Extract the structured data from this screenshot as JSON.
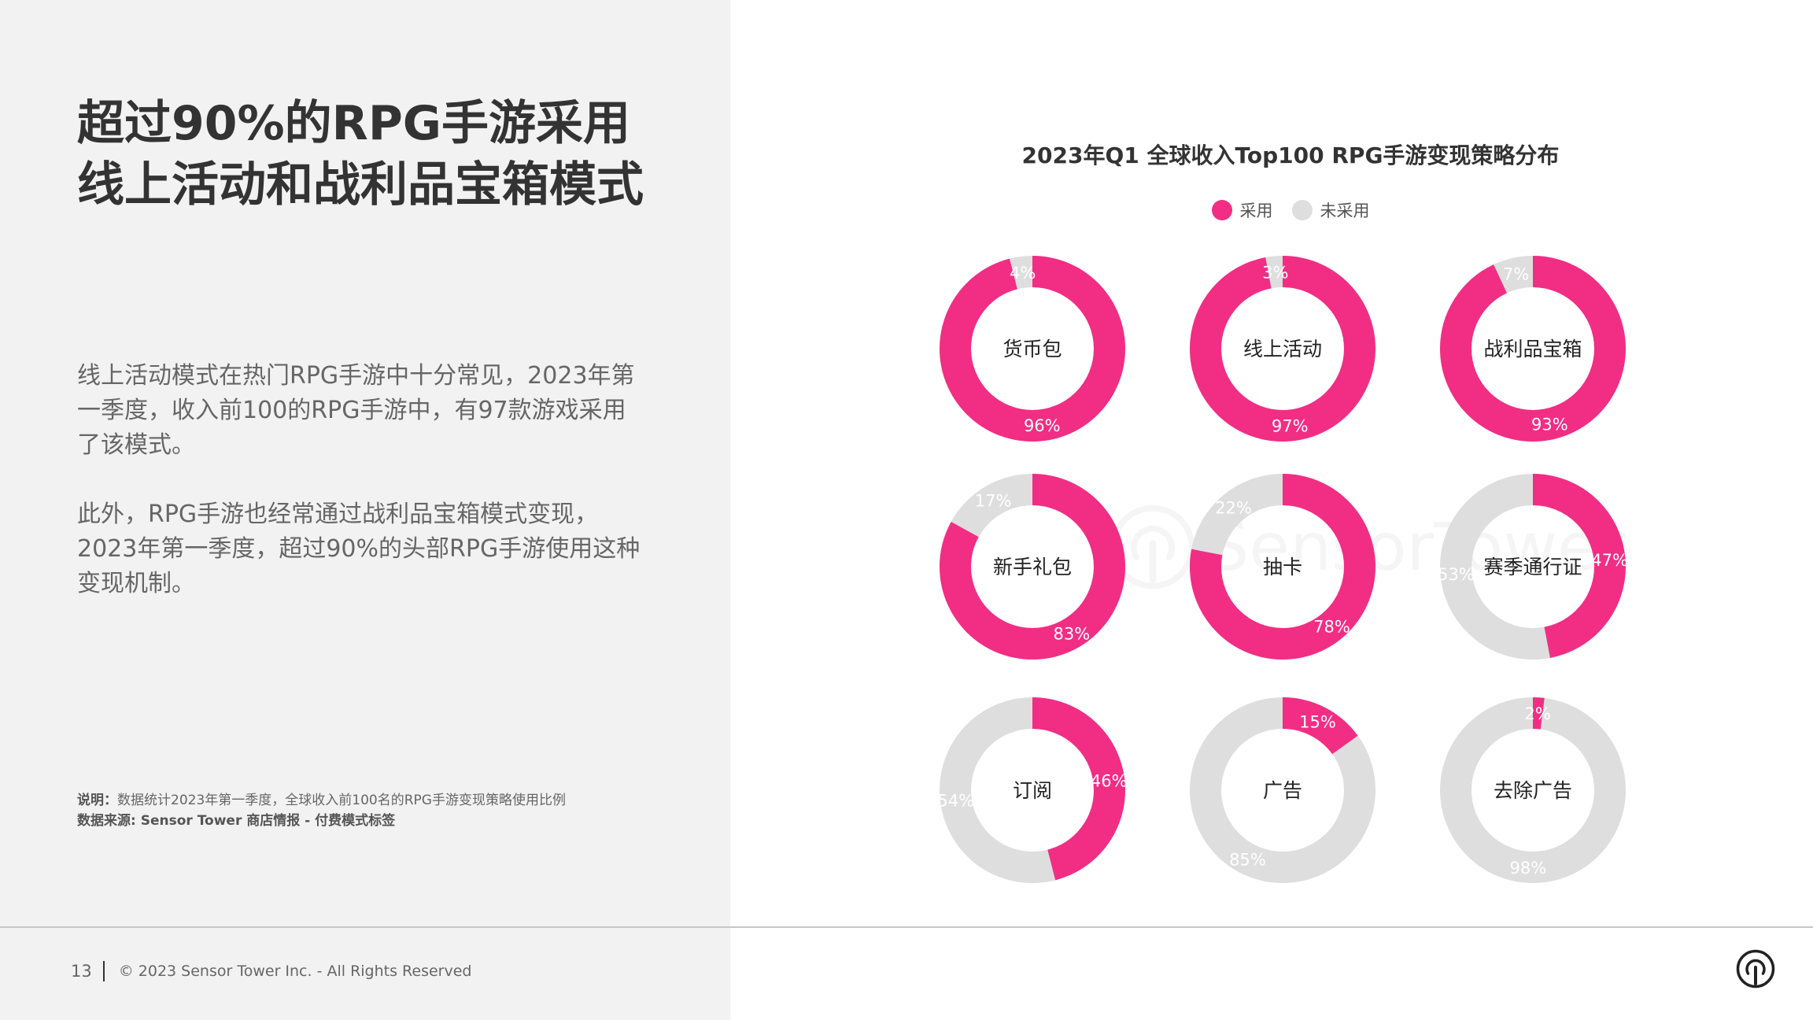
{
  "headline": {
    "line1": "超过90%的RPG手游采用",
    "line2": "线上活动和战利品宝箱模式"
  },
  "body": {
    "paragraph1": "线上活动模式在热门RPG手游中十分常见，2023年第一季度，收入前100的RPG手游中，有97款游戏采用了该模式。",
    "paragraph2": "此外，RPG手游也经常通过战利品宝箱模式变现，2023年第一季度，超过90%的头部RPG手游使用这种变现机制。"
  },
  "notes": {
    "note_label": "说明：",
    "note_text": "数据统计2023年第一季度，全球收入前100名的RPG手游变现策略使用比例",
    "source_label": "数据来源: ",
    "source_text": "Sensor Tower 商店情报 - 付费模式标签"
  },
  "footer": {
    "page_number": "13",
    "copyright": "© 2023 Sensor Tower Inc. - All Rights Reserved"
  },
  "watermark": {
    "text": "SensorTower",
    "icon": "sensor-tower-logo-icon"
  },
  "brand": {
    "icon": "sensor-tower-logo-icon"
  },
  "colors": {
    "adopted": "#f22d84",
    "not_adopted": "#dedede",
    "left_panel_bg": "#f2f2f2"
  },
  "chart_data": {
    "type": "pie",
    "variant": "donut-grid",
    "title": "2023年Q1 全球收入Top100 RPG手游变现策略分布",
    "legend": [
      "采用",
      "未采用"
    ],
    "legend_position": "top",
    "unit": "%",
    "charts": [
      {
        "category": "货币包",
        "adopted": 96,
        "not_adopted": 4,
        "adopted_label": "96%",
        "not_adopted_label": "4%"
      },
      {
        "category": "线上活动",
        "adopted": 97,
        "not_adopted": 3,
        "adopted_label": "97%",
        "not_adopted_label": "3%"
      },
      {
        "category": "战利品宝箱",
        "adopted": 93,
        "not_adopted": 7,
        "adopted_label": "93%",
        "not_adopted_label": "7%"
      },
      {
        "category": "新手礼包",
        "adopted": 83,
        "not_adopted": 17,
        "adopted_label": "83%",
        "not_adopted_label": "17%"
      },
      {
        "category": "抽卡",
        "adopted": 78,
        "not_adopted": 22,
        "adopted_label": "78%",
        "not_adopted_label": "22%"
      },
      {
        "category": "赛季通行证",
        "adopted": 47,
        "not_adopted": 53,
        "adopted_label": "47%",
        "not_adopted_label": "53%"
      },
      {
        "category": "订阅",
        "adopted": 46,
        "not_adopted": 54,
        "adopted_label": "46%",
        "not_adopted_label": "54%"
      },
      {
        "category": "广告",
        "adopted": 15,
        "not_adopted": 85,
        "adopted_label": "15%",
        "not_adopted_label": "85%"
      },
      {
        "category": "去除广告",
        "adopted": 2,
        "not_adopted": 98,
        "adopted_label": "2%",
        "not_adopted_label": "98%"
      }
    ]
  }
}
